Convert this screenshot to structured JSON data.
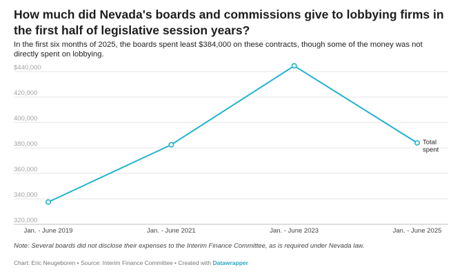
{
  "header": {
    "title": "How much did Nevada's boards and commissions give to lobbying firms in the first half of legislative session years?",
    "subtitle": "In the first six months of 2025, the boards spent least $384,000 on these contracts, though some of the money was not directly spent on lobbying."
  },
  "chart_data": {
    "type": "line",
    "categories": [
      "Jan. - June 2019",
      "Jan. - June 2021",
      "Jan. - June 2023",
      "Jan. - June 2025"
    ],
    "series": [
      {
        "name": "Total spent",
        "values": [
          337500,
          382500,
          444500,
          384000
        ]
      }
    ],
    "ylim": [
      320000,
      440000
    ],
    "yticks": [
      "$440,000",
      "420,000",
      "400,000",
      "380,000",
      "360,000",
      "340,000",
      "320,000"
    ],
    "ytick_values": [
      440000,
      420000,
      400000,
      380000,
      360000,
      340000,
      320000
    ],
    "series_label_lines": [
      "Total",
      "spent"
    ],
    "grid": true,
    "line_color": "#1fb3cc"
  },
  "note": "Note: Several boards did not disclose their expenses to the Interim Finance Committee, as is required under Nevada law.",
  "footer": {
    "prefix": "Chart: Eric Neugeboren • Source: Interim Finance Committee • Created with ",
    "tool": "Datawrapper"
  }
}
